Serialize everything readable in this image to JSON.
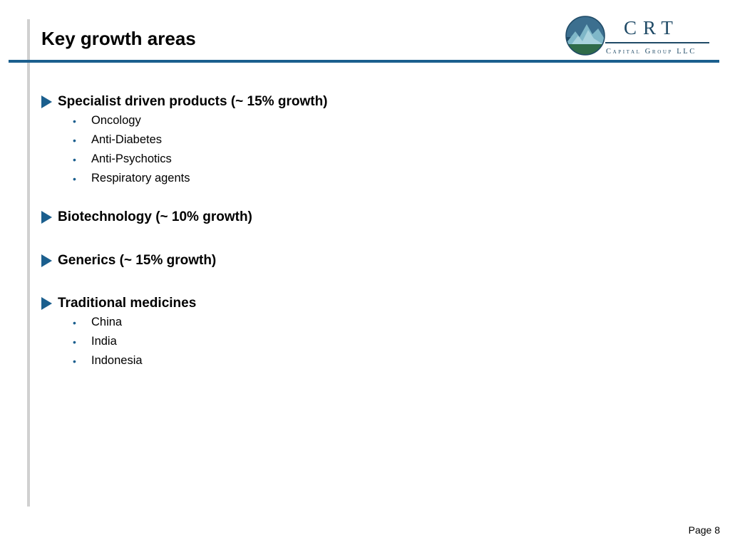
{
  "title": "Key growth areas",
  "logo": {
    "primary": "CRT",
    "secondary": "Capital Group LLC",
    "colors": {
      "navy": "#1f4a66",
      "sky": "#3c6f8f",
      "green": "#2f6b49",
      "mountain": "#7fb7c8"
    }
  },
  "sections": [
    {
      "title": "Specialist driven products (~ 15% growth)",
      "items": [
        "Oncology",
        "Anti-Diabetes",
        "Anti-Psychotics",
        "Respiratory agents"
      ]
    },
    {
      "title": "Biotechnology (~ 10% growth)",
      "items": []
    },
    {
      "title": "Generics (~ 15% growth)",
      "items": []
    },
    {
      "title": "Traditional medicines",
      "items": [
        "China",
        "India",
        "Indonesia"
      ]
    }
  ],
  "footer": {
    "page_label": "Page 8"
  },
  "colors": {
    "accent": "#1b5f8e",
    "left_rule": "#d0d0d0"
  }
}
